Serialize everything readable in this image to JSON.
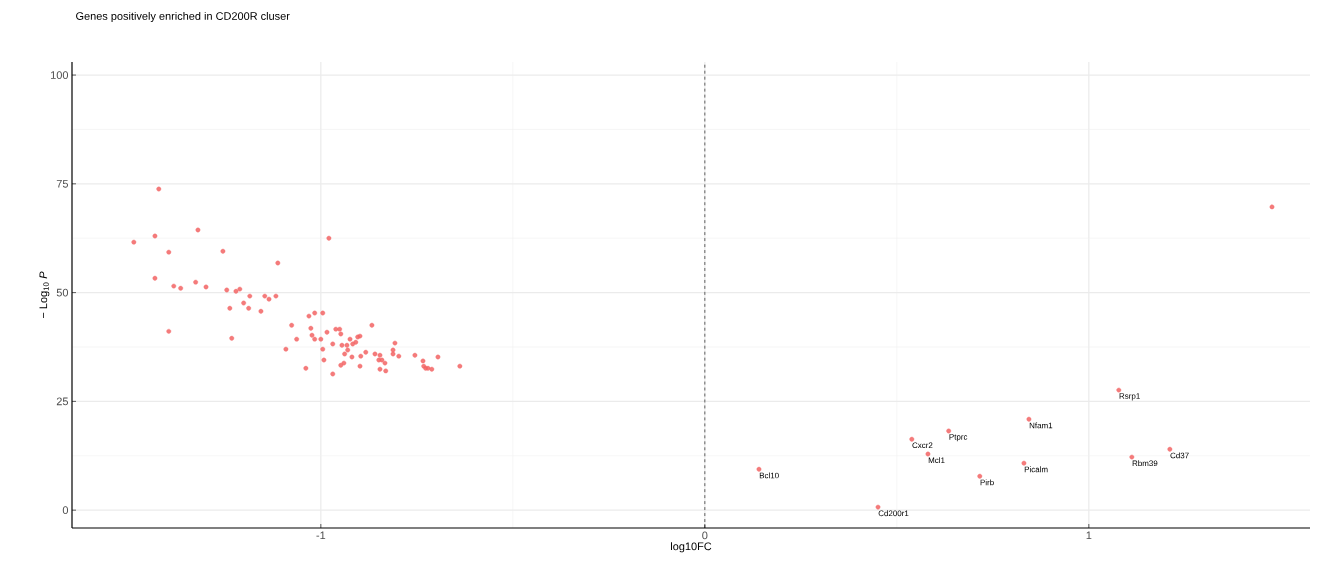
{
  "chart_data": {
    "type": "scatter",
    "title": "Genes positively enriched in CD200R cluser",
    "xlabel": "log10FC",
    "ylabel": "− Log$_{10}$ *P*",
    "xlim": [
      -1.648,
      1.576
    ],
    "ylim": [
      -4.1,
      103
    ],
    "xticks": [
      -1,
      0,
      1
    ],
    "yticks": [
      0,
      25,
      50,
      75,
      100
    ],
    "grid": true,
    "marker": "circle",
    "ref_lines": [
      {
        "axis": "x",
        "value": 0,
        "line_style": "dashed",
        "color": "#000000"
      }
    ],
    "series": [
      {
        "color": "#f26464",
        "x": [
          -1.487,
          -1.432,
          -1.432,
          -1.422,
          -1.396,
          -1.396,
          -1.383,
          -1.365,
          -1.32,
          -1.326,
          -1.299,
          -1.255,
          -1.245,
          -1.237,
          -1.232,
          -1.221,
          -1.211,
          -1.201,
          -1.188,
          -1.185,
          -1.156,
          -1.146,
          -1.135,
          -1.117,
          -1.112,
          -1.091,
          -1.076,
          -1.063,
          -1.039,
          -1.031,
          -1.026,
          -1.023,
          -1.016,
          -1.016,
          -1.0,
          -0.995,
          -0.995,
          -0.992,
          -0.979,
          -0.984,
          -0.969,
          -0.969,
          -0.961,
          -0.951,
          -0.948,
          -0.945,
          -0.948,
          -0.94,
          -0.938,
          -0.932,
          -0.93,
          -0.924,
          -0.919,
          -0.917,
          -0.909,
          -0.904,
          -0.898,
          -0.896,
          -0.898,
          -0.883,
          -0.867,
          -0.859,
          -0.849,
          -0.846,
          -0.846,
          -0.841,
          -0.833,
          -0.831,
          -0.812,
          -0.812,
          -0.807,
          -0.797,
          -0.755,
          -0.734,
          -0.732,
          -0.727,
          -0.721,
          -0.711,
          -0.695,
          -0.638,
          1.477,
          1.078,
          0.844,
          0.635,
          0.539,
          0.581,
          1.211,
          1.112,
          0.831,
          0.716,
          0.141,
          0.451
        ],
        "values": [
          61.6,
          53.3,
          63.0,
          73.8,
          59.3,
          41.1,
          51.5,
          51.0,
          64.4,
          52.4,
          51.3,
          59.5,
          50.6,
          46.4,
          39.5,
          50.3,
          50.8,
          47.6,
          46.4,
          49.2,
          45.7,
          49.2,
          48.5,
          49.2,
          56.8,
          37.0,
          42.5,
          39.3,
          32.6,
          44.6,
          41.8,
          40.2,
          45.3,
          39.3,
          39.3,
          45.3,
          37.0,
          34.5,
          62.5,
          40.9,
          31.3,
          38.2,
          41.6,
          41.6,
          40.5,
          37.9,
          33.3,
          33.8,
          35.9,
          37.9,
          36.8,
          39.3,
          35.2,
          38.2,
          38.6,
          39.8,
          40.0,
          35.4,
          33.1,
          36.3,
          42.5,
          35.9,
          34.5,
          35.6,
          32.4,
          34.5,
          33.8,
          32.0,
          36.8,
          35.9,
          38.4,
          35.4,
          35.6,
          34.3,
          33.1,
          32.6,
          32.6,
          32.4,
          35.2,
          33.1,
          69.7,
          27.6,
          20.9,
          18.2,
          16.3,
          12.9,
          14.0,
          12.2,
          10.8,
          7.8,
          9.4,
          0.7
        ]
      }
    ],
    "annotations": [
      {
        "text": "Rsrp1",
        "x": 1.078,
        "y": 27.6
      },
      {
        "text": "Nfam1",
        "x": 0.844,
        "y": 20.9
      },
      {
        "text": "Ptprc",
        "x": 0.635,
        "y": 18.2
      },
      {
        "text": "Cxcr2",
        "x": 0.539,
        "y": 16.3
      },
      {
        "text": "Mcl1",
        "x": 0.581,
        "y": 12.9
      },
      {
        "text": "Cd37",
        "x": 1.211,
        "y": 14.0
      },
      {
        "text": "Rbm39",
        "x": 1.112,
        "y": 12.2
      },
      {
        "text": "Picalm",
        "x": 0.831,
        "y": 10.8
      },
      {
        "text": "Pirb",
        "x": 0.716,
        "y": 7.8
      },
      {
        "text": "Bcl10",
        "x": 0.141,
        "y": 9.4
      },
      {
        "text": "Cd200r1",
        "x": 0.451,
        "y": 0.7
      }
    ]
  }
}
